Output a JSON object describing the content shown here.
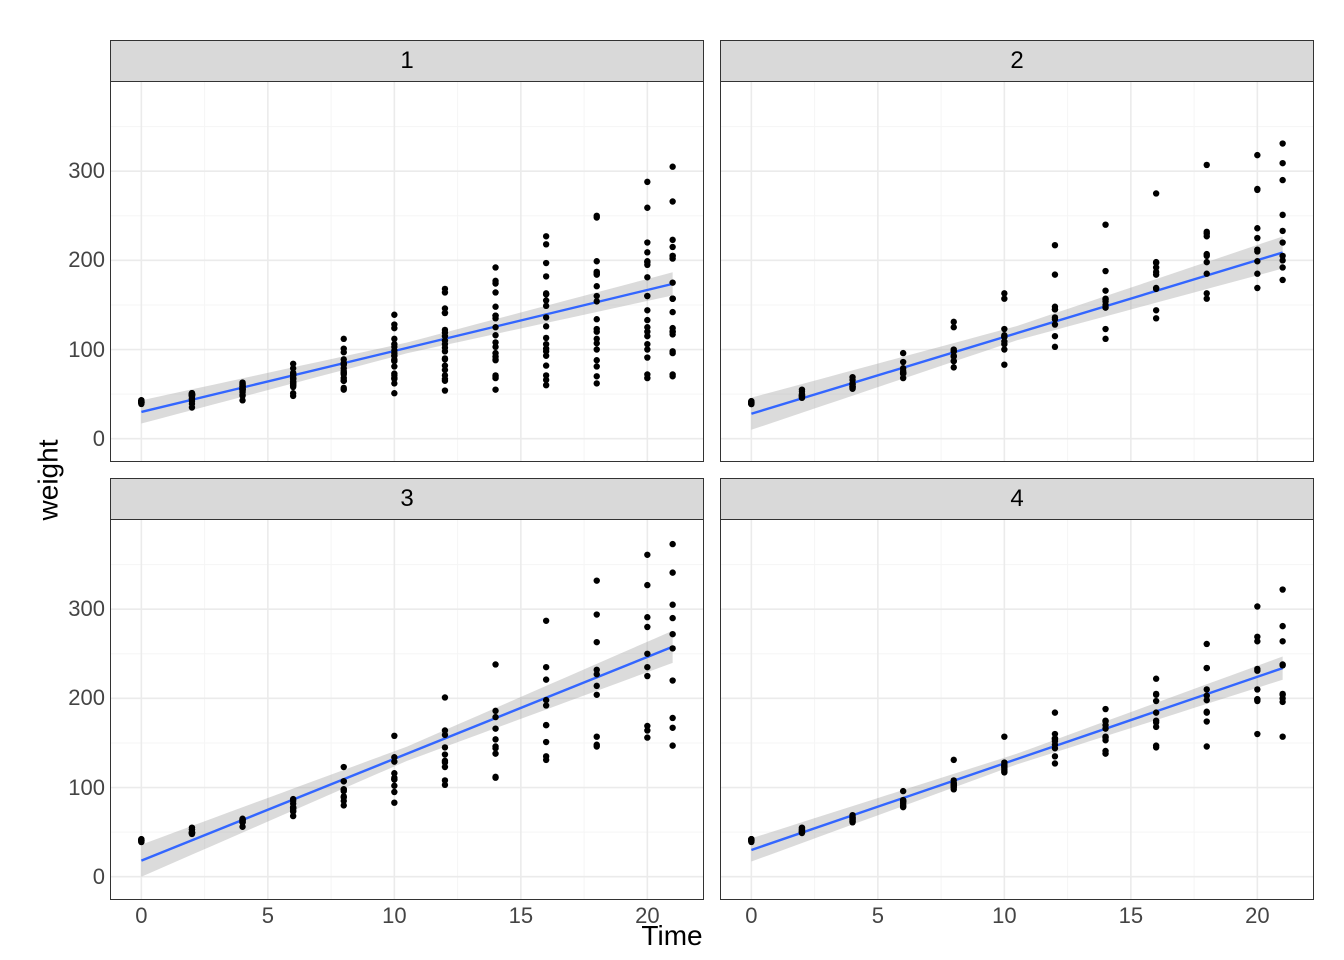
{
  "chart": {
    "type": "scatter-with-regression-facets",
    "xlabel": "Time",
    "ylabel": "weight",
    "xlim": [
      -1.2,
      22.2
    ],
    "ylim": [
      -25,
      400
    ],
    "xticks": [
      0,
      5,
      10,
      15,
      20
    ],
    "xtick_labels": [
      "0",
      "5",
      "10",
      "15",
      "20"
    ],
    "yticks": [
      0,
      100,
      200,
      300
    ],
    "ytick_labels": [
      "0",
      "100",
      "200",
      "300"
    ],
    "panel_bg": "#ffffff",
    "strip_bg": "#d9d9d9",
    "grid_major_color": "#ebebeb",
    "grid_minor_color": "#f5f5f5",
    "panel_border_color": "#333333",
    "line_color": "#3366ff",
    "line_width": 2.4,
    "ribbon_color": "#999999",
    "ribbon_opacity": 0.35,
    "point_color": "#000000",
    "point_radius": 3.2,
    "axis_text_color": "#444444",
    "axis_text_fontsize": 22,
    "strip_fontsize": 24,
    "label_fontsize": 28,
    "x_minor": [
      2.5,
      7.5,
      12.5,
      17.5
    ],
    "y_minor": [
      50,
      150,
      250,
      350
    ],
    "facets": [
      {
        "label": "1",
        "times": [
          0,
          2,
          4,
          6,
          8,
          10,
          12,
          14,
          16,
          18,
          20,
          21
        ],
        "series": [
          [
            42,
            51,
            59,
            64,
            76,
            93,
            106,
            125,
            149,
            171,
            199,
            205
          ],
          [
            40,
            49,
            58,
            72,
            84,
            103,
            122,
            138,
            162,
            187,
            209,
            215
          ],
          [
            43,
            39,
            55,
            67,
            84,
            99,
            115,
            138,
            163,
            187,
            198,
            202
          ],
          [
            42,
            49,
            56,
            67,
            74,
            87,
            102,
            108,
            136,
            154,
            160,
            157
          ],
          [
            41,
            42,
            48,
            60,
            79,
            106,
            141,
            164,
            197,
            199,
            220,
            223
          ],
          [
            41,
            49,
            59,
            74,
            97,
            124,
            141,
            148,
            155,
            160,
            160,
            157
          ],
          [
            41,
            49,
            57,
            71,
            89,
            112,
            146,
            174,
            218,
            250,
            288,
            305
          ],
          [
            42,
            50,
            61,
            71,
            84,
            93,
            110,
            116,
            126,
            134,
            125,
            120
          ],
          [
            42,
            51,
            59,
            68,
            85,
            96,
            90,
            92,
            93,
            100,
            100,
            98
          ],
          [
            41,
            44,
            52,
            63,
            74,
            81,
            89,
            96,
            101,
            112,
            120,
            124
          ],
          [
            43,
            51,
            63,
            84,
            112,
            139,
            168,
            177,
            182,
            184,
            181,
            175
          ],
          [
            41,
            49,
            56,
            62,
            72,
            88,
            119,
            135,
            162,
            185,
            195,
            205
          ],
          [
            41,
            48,
            53,
            60,
            65,
            67,
            71,
            70,
            71,
            81,
            91,
            96
          ],
          [
            41,
            49,
            62,
            79,
            101,
            128,
            164,
            192,
            227,
            248,
            259,
            266
          ],
          [
            41,
            49,
            56,
            64,
            68,
            68,
            67,
            68,
            66,
            70,
            72,
            72
          ],
          [
            41,
            45,
            49,
            51,
            57,
            51,
            54,
            55,
            60,
            62,
            68,
            70
          ],
          [
            42,
            51,
            61,
            72,
            83,
            89,
            98,
            103,
            113,
            123,
            133,
            142
          ],
          [
            39,
            35,
            43,
            48,
            55,
            62,
            65,
            71,
            82,
            88,
            106,
            120
          ],
          [
            43,
            48,
            55,
            62,
            65,
            71,
            82,
            88,
            106,
            120,
            144,
            157
          ],
          [
            41,
            47,
            54,
            58,
            65,
            73,
            77,
            89,
            98,
            107,
            115,
            117
          ]
        ],
        "regression": {
          "intercept": 30,
          "slope": 6.84,
          "se_mid": 6,
          "se_end": 13
        }
      },
      {
        "label": "2",
        "times": [
          0,
          2,
          4,
          6,
          8,
          10,
          12,
          14,
          16,
          18,
          20,
          21
        ],
        "series": [
          [
            40,
            50,
            62,
            86,
            125,
            163,
            217,
            240,
            275,
            307,
            318,
            331
          ],
          [
            42,
            55,
            69,
            96,
            131,
            157,
            184,
            188,
            197,
            198,
            199,
            200
          ],
          [
            41,
            53,
            66,
            79,
            100,
            123,
            148,
            157,
            168,
            185,
            210,
            205
          ],
          [
            39,
            46,
            58,
            73,
            87,
            100,
            115,
            123,
            144,
            163,
            185,
            192
          ],
          [
            39,
            46,
            58,
            73,
            92,
            114,
            145,
            156,
            184,
            207,
            212,
            233
          ],
          [
            39,
            48,
            59,
            74,
            87,
            106,
            134,
            150,
            187,
            230,
            279,
            309
          ],
          [
            42,
            48,
            57,
            74,
            93,
            114,
            136,
            147,
            169,
            205,
            236,
            251
          ],
          [
            39,
            48,
            61,
            76,
            98,
            116,
            145,
            166,
            198,
            227,
            225,
            220
          ],
          [
            41,
            48,
            56,
            68,
            80,
            83,
            103,
            112,
            135,
            157,
            169,
            178
          ],
          [
            41,
            49,
            61,
            74,
            98,
            109,
            128,
            154,
            192,
            232,
            280,
            290
          ]
        ],
        "regression": {
          "intercept": 28,
          "slope": 8.61,
          "se_mid": 8,
          "se_end": 18
        }
      },
      {
        "label": "3",
        "times": [
          0,
          2,
          4,
          6,
          8,
          10,
          12,
          14,
          16,
          18,
          20,
          21
        ],
        "series": [
          [
            42,
            53,
            62,
            73,
            85,
            102,
            123,
            138,
            170,
            204,
            235,
            256
          ],
          [
            41,
            49,
            65,
            82,
            107,
            129,
            159,
            179,
            221,
            263,
            291,
            305
          ],
          [
            39,
            50,
            63,
            77,
            96,
            111,
            137,
            144,
            151,
            146,
            156,
            147
          ],
          [
            41,
            49,
            63,
            85,
            107,
            134,
            164,
            186,
            235,
            294,
            327,
            341
          ],
          [
            41,
            53,
            64,
            87,
            123,
            158,
            201,
            238,
            287,
            332,
            361,
            373
          ],
          [
            39,
            48,
            61,
            76,
            98,
            116,
            145,
            166,
            198,
            227,
            225,
            220
          ],
          [
            41,
            48,
            56,
            68,
            80,
            83,
            103,
            112,
            135,
            157,
            169,
            178
          ],
          [
            41,
            49,
            61,
            74,
            98,
            109,
            128,
            154,
            192,
            232,
            280,
            290
          ],
          [
            42,
            50,
            61,
            78,
            89,
            109,
            130,
            146,
            170,
            214,
            250,
            272
          ],
          [
            41,
            55,
            64,
            77,
            90,
            95,
            108,
            111,
            131,
            148,
            164,
            167
          ]
        ],
        "regression": {
          "intercept": 18,
          "slope": 11.42,
          "se_mid": 8,
          "se_end": 18
        }
      },
      {
        "label": "4",
        "times": [
          0,
          2,
          4,
          6,
          8,
          10,
          12,
          14,
          16,
          18,
          20,
          21
        ],
        "series": [
          [
            42,
            51,
            66,
            85,
            103,
            124,
            155,
            153,
            175,
            184,
            199,
            204
          ],
          [
            42,
            49,
            63,
            84,
            103,
            126,
            160,
            174,
            204,
            234,
            269,
            281
          ],
          [
            42,
            55,
            69,
            96,
            131,
            157,
            184,
            188,
            197,
            198,
            199,
            200
          ],
          [
            42,
            51,
            65,
            86,
            103,
            118,
            127,
            138,
            145,
            146,
            160,
            157
          ],
          [
            41,
            50,
            61,
            78,
            98,
            117,
            135,
            141,
            147,
            174,
            197,
            196
          ],
          [
            40,
            52,
            62,
            82,
            101,
            120,
            144,
            156,
            173,
            210,
            231,
            238
          ],
          [
            41,
            53,
            66,
            79,
            100,
            123,
            148,
            157,
            168,
            185,
            210,
            205
          ],
          [
            39,
            50,
            62,
            80,
            104,
            125,
            154,
            170,
            222,
            261,
            303,
            322
          ],
          [
            40,
            53,
            64,
            85,
            108,
            128,
            152,
            166,
            184,
            203,
            233,
            237
          ],
          [
            41,
            54,
            67,
            84,
            105,
            122,
            155,
            175,
            205,
            234,
            264,
            264
          ]
        ],
        "regression": {
          "intercept": 30,
          "slope": 9.71,
          "se_mid": 6,
          "se_end": 13
        }
      }
    ]
  }
}
